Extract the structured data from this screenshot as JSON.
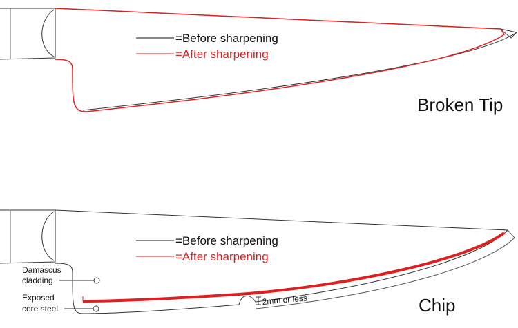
{
  "panels": [
    {
      "legend": {
        "before": "=Before sharpening",
        "after": "=After sharpening"
      },
      "label": "Broken Tip"
    },
    {
      "legend": {
        "before": "=Before sharpening",
        "after": "=After sharpening"
      },
      "label": "Chip",
      "annotations": {
        "cladding": [
          "Damascus",
          "cladding"
        ],
        "core": [
          "Exposed",
          "core steel"
        ],
        "chip_depth": "2mm or less"
      }
    }
  ]
}
